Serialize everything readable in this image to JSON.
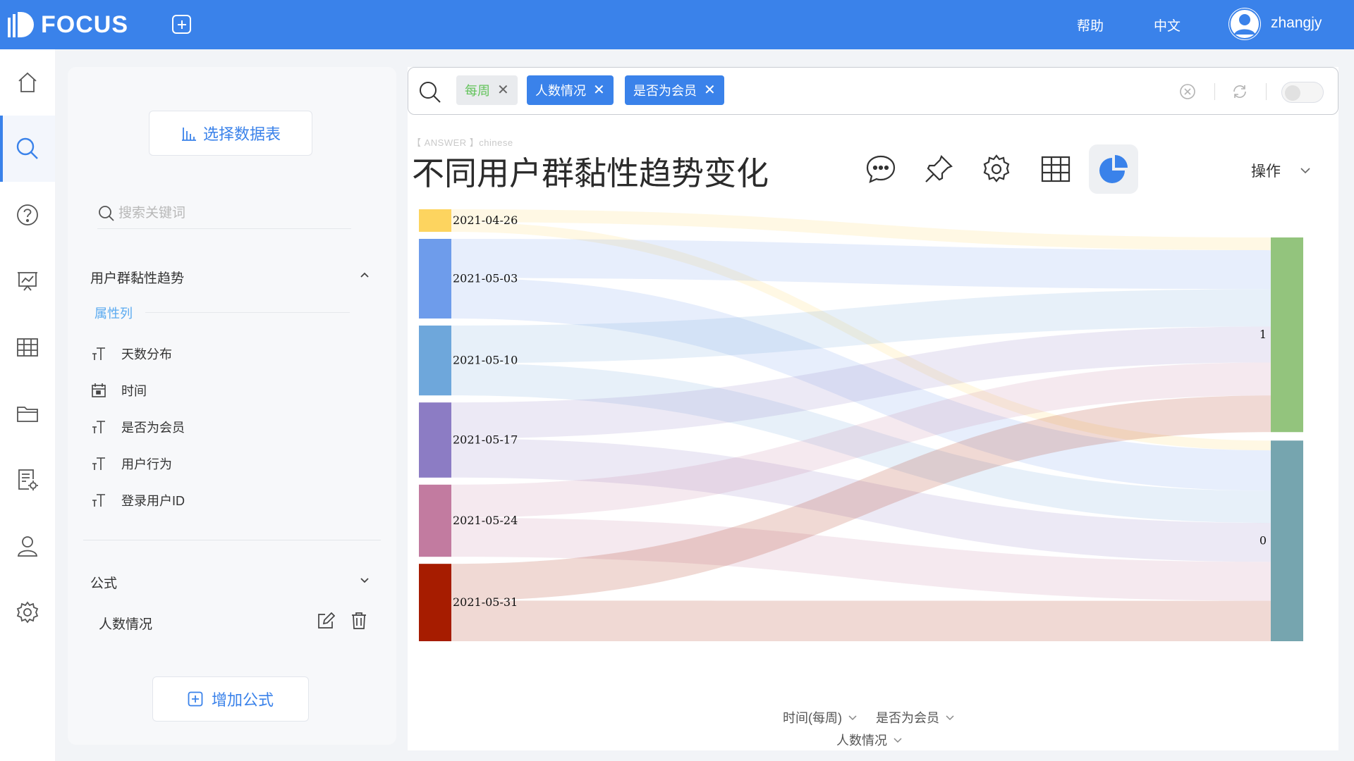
{
  "topbar": {
    "brand": "FOCUS",
    "help": "帮助",
    "language": "中文",
    "username": "zhangjy"
  },
  "nav": {
    "items": [
      {
        "name": "home-icon"
      },
      {
        "name": "search-icon",
        "active": true
      },
      {
        "name": "help-icon"
      },
      {
        "name": "presentation-icon"
      },
      {
        "name": "table-icon"
      },
      {
        "name": "folder-icon"
      },
      {
        "name": "document-settings-icon"
      },
      {
        "name": "user-icon"
      },
      {
        "name": "gear-icon"
      }
    ]
  },
  "datapanel": {
    "select_table": "选择数据表",
    "search_placeholder": "搜索关键词",
    "dataset_title": "用户群黏性趋势",
    "attr_label": "属性列",
    "fields": [
      {
        "label": "天数分布",
        "icon": "text-type-icon"
      },
      {
        "label": "时间",
        "icon": "calendar-icon"
      },
      {
        "label": "是否为会员",
        "icon": "text-type-icon"
      },
      {
        "label": "用户行为",
        "icon": "text-type-icon"
      },
      {
        "label": "登录用户ID",
        "icon": "text-type-icon"
      }
    ],
    "formula_title": "公式",
    "formulas": [
      {
        "label": "人数情况"
      }
    ],
    "add_formula": "增加公式"
  },
  "search": {
    "tokens": [
      {
        "label": "每周",
        "style": "green"
      },
      {
        "label": "人数情况",
        "style": "blue"
      },
      {
        "label": "是否为会员",
        "style": "blue"
      }
    ]
  },
  "answer": {
    "tag": "【 ANSWER 】chinese",
    "title": "不同用户群黏性趋势变化",
    "operations": "操作"
  },
  "chart_data": {
    "type": "sankey",
    "sources": [
      {
        "label": "2021-04-26",
        "color": "#fdd45f",
        "value": 0.3
      },
      {
        "label": "2021-05-03",
        "color": "#6e9ceb",
        "value": 1.06
      },
      {
        "label": "2021-05-10",
        "color": "#6ea7db",
        "value": 0.93
      },
      {
        "label": "2021-05-17",
        "color": "#8c7cc4",
        "value": 1.0
      },
      {
        "label": "2021-05-24",
        "color": "#c27ba0",
        "value": 0.96
      },
      {
        "label": "2021-05-31",
        "color": "#a61c00",
        "value": 1.03
      }
    ],
    "targets": [
      {
        "label": "1",
        "color": "#93c47d"
      },
      {
        "label": "0",
        "color": "#76a5af"
      }
    ],
    "links": [
      {
        "source": "2021-04-26",
        "target": "1",
        "value": 0.17
      },
      {
        "source": "2021-04-26",
        "target": "0",
        "value": 0.13
      },
      {
        "source": "2021-05-03",
        "target": "1",
        "value": 0.52
      },
      {
        "source": "2021-05-03",
        "target": "0",
        "value": 0.54
      },
      {
        "source": "2021-05-10",
        "target": "1",
        "value": 0.5
      },
      {
        "source": "2021-05-10",
        "target": "0",
        "value": 0.43
      },
      {
        "source": "2021-05-17",
        "target": "1",
        "value": 0.48
      },
      {
        "source": "2021-05-17",
        "target": "0",
        "value": 0.52
      },
      {
        "source": "2021-05-24",
        "target": "1",
        "value": 0.44
      },
      {
        "source": "2021-05-24",
        "target": "0",
        "value": 0.52
      },
      {
        "source": "2021-05-31",
        "target": "1",
        "value": 0.49
      },
      {
        "source": "2021-05-31",
        "target": "0",
        "value": 0.54
      }
    ],
    "axis_fields": [
      "时间(每周)",
      "是否为会员",
      "人数情况"
    ]
  }
}
